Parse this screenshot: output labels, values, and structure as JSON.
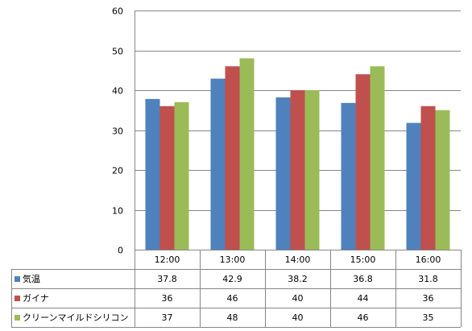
{
  "chart_data": {
    "type": "bar",
    "categories": [
      "12:00",
      "13:00",
      "14:00",
      "15:00",
      "16:00"
    ],
    "series": [
      {
        "name": "気温",
        "color": "#4F81BD",
        "values": [
          37.8,
          42.9,
          38.2,
          36.8,
          31.8
        ]
      },
      {
        "name": "ガイナ",
        "color": "#C0504D",
        "values": [
          36,
          46,
          40,
          44,
          36
        ]
      },
      {
        "name": "クリーンマイルドシリコン",
        "color": "#9BBB59",
        "values": [
          37,
          48,
          40,
          46,
          35
        ]
      }
    ],
    "table_values": [
      [
        "37.8",
        "42.9",
        "38.2",
        "36.8",
        "31.8"
      ],
      [
        "36",
        "46",
        "40",
        "44",
        "36"
      ],
      [
        "37",
        "48",
        "40",
        "46",
        "35"
      ]
    ],
    "yticks": [
      "0",
      "10",
      "20",
      "30",
      "40",
      "50",
      "60"
    ],
    "ylim": [
      0,
      60
    ],
    "grid": true,
    "legend": "data-table"
  }
}
